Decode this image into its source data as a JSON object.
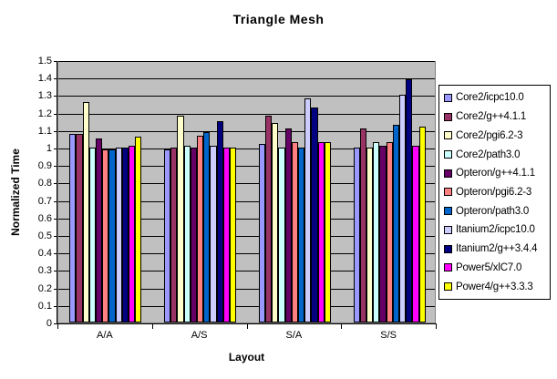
{
  "chart_data": {
    "type": "bar",
    "title": "Triangle Mesh",
    "xlabel": "Layout",
    "ylabel": "Normalized Time",
    "ylim": [
      0,
      1.5
    ],
    "ytick_step": 0.1,
    "y_ticks": [
      "0",
      "0.1",
      "0.2",
      "0.3",
      "0.4",
      "0.5",
      "0.6",
      "0.7",
      "0.8",
      "0.9",
      "1",
      "1.1",
      "1.2",
      "1.3",
      "1.4",
      "1.5"
    ],
    "categories": [
      "A/A",
      "A/S",
      "S/A",
      "S/S"
    ],
    "grid": true,
    "legend_position": "right",
    "plot_bg_color": "#C0C0C0",
    "gridline_color": "#000000",
    "series": [
      {
        "name": "Core2/icpc10.0",
        "color": "#9999FF",
        "values": [
          1.08,
          0.99,
          1.02,
          1.0
        ]
      },
      {
        "name": "Core2/g++4.1.1",
        "color": "#993366",
        "values": [
          1.08,
          1.0,
          1.18,
          1.11
        ]
      },
      {
        "name": "Core2/pgi6.2-3",
        "color": "#FFFFCC",
        "values": [
          1.26,
          1.18,
          1.14,
          1.0
        ]
      },
      {
        "name": "Core2/path3.0",
        "color": "#CCFFFF",
        "values": [
          1.0,
          1.01,
          1.0,
          1.03
        ]
      },
      {
        "name": "Opteron/g++4.1.1",
        "color": "#660066",
        "values": [
          1.05,
          1.0,
          1.11,
          1.01
        ]
      },
      {
        "name": "Opteron/pgi6.2-3",
        "color": "#FF8080",
        "values": [
          0.99,
          1.07,
          1.03,
          1.03
        ]
      },
      {
        "name": "Opteron/path3.0",
        "color": "#0066CC",
        "values": [
          0.99,
          1.09,
          1.0,
          1.13
        ]
      },
      {
        "name": "Itanium2/icpc10.0",
        "color": "#CCCCFF",
        "values": [
          1.0,
          1.01,
          1.28,
          1.3
        ]
      },
      {
        "name": "Itanium2/g++3.4.4",
        "color": "#000080",
        "values": [
          1.0,
          1.15,
          1.23,
          1.39
        ]
      },
      {
        "name": "Power5/xlC7.0",
        "color": "#FF00FF",
        "values": [
          1.01,
          1.0,
          1.03,
          1.01
        ]
      },
      {
        "name": "Power4/g++3.3.3",
        "color": "#FFFF00",
        "values": [
          1.06,
          1.0,
          1.03,
          1.12
        ]
      }
    ]
  }
}
